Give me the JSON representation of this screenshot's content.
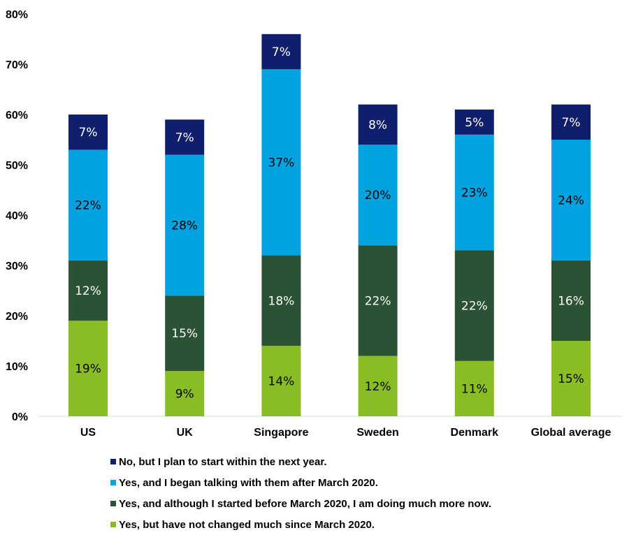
{
  "chart_data": {
    "type": "bar",
    "stacked": true,
    "title": "",
    "xlabel": "",
    "ylabel": "",
    "ylim": [
      0,
      80
    ],
    "yticks": [
      "0%",
      "10%",
      "20%",
      "30%",
      "40%",
      "50%",
      "60%",
      "70%",
      "80%"
    ],
    "grid": false,
    "legend_position": "bottom",
    "categories": [
      "US",
      "UK",
      "Singapore",
      "Sweden",
      "Denmark",
      "Global average"
    ],
    "series": [
      {
        "name": "Yes, but have not changed much since March 2020.",
        "color": "#8abd24",
        "label_color": "#000000",
        "values": [
          19,
          9,
          14,
          12,
          11,
          15
        ]
      },
      {
        "name": "Yes, and although I started before March 2020, I am doing much more now.",
        "color": "#2b5234",
        "label_color": "#ffffff",
        "values": [
          12,
          15,
          18,
          22,
          22,
          16
        ]
      },
      {
        "name": "Yes, and I began talking with them after March 2020.",
        "color": "#00a3e0",
        "label_color": "#000000",
        "values": [
          22,
          28,
          37,
          20,
          23,
          24
        ]
      },
      {
        "name": "No, but I plan to start within the next year.",
        "color": "#0f1f6b",
        "label_color": "#ffffff",
        "values": [
          7,
          7,
          7,
          8,
          5,
          7
        ]
      }
    ],
    "legend_order": [
      3,
      2,
      1,
      0
    ]
  }
}
